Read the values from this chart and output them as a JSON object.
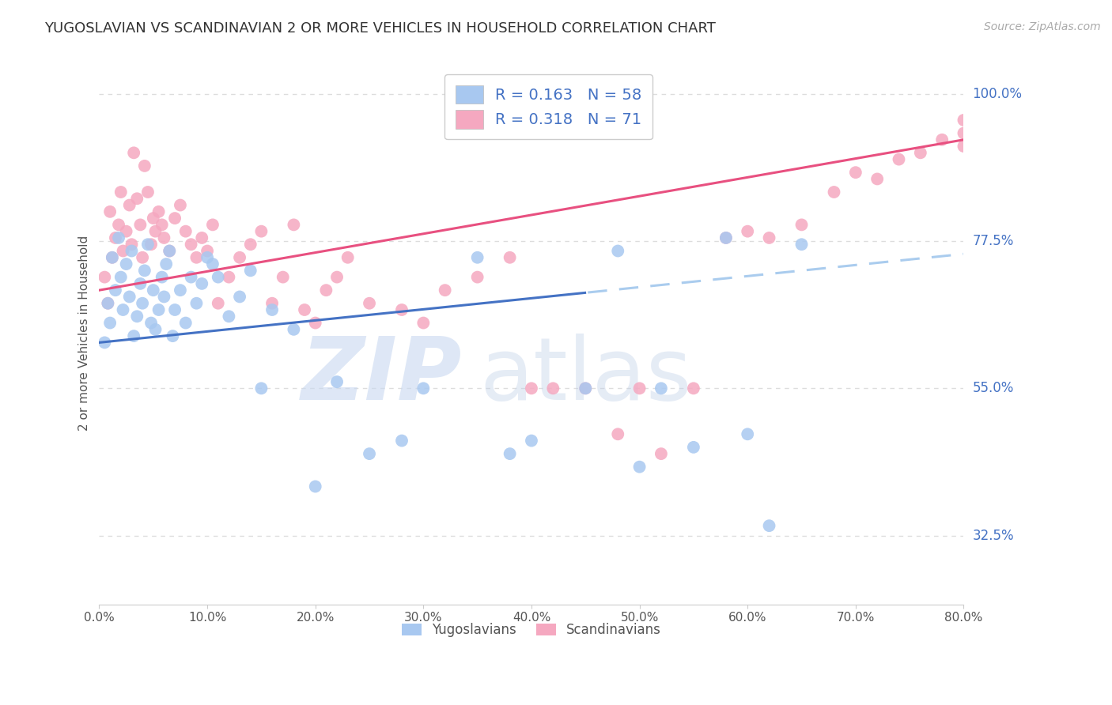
{
  "title": "YUGOSLAVIAN VS SCANDINAVIAN 2 OR MORE VEHICLES IN HOUSEHOLD CORRELATION CHART",
  "source": "Source: ZipAtlas.com",
  "ylabel": "2 or more Vehicles in Household",
  "legend_label1": "Yugoslavians",
  "legend_label2": "Scandinavians",
  "R1": 0.163,
  "N1": 58,
  "R2": 0.318,
  "N2": 71,
  "x_min": 0.0,
  "x_max": 80.0,
  "y_min": 22.0,
  "y_max": 105.0,
  "yticks": [
    32.5,
    55.0,
    77.5,
    100.0
  ],
  "xticks": [
    0.0,
    10.0,
    20.0,
    30.0,
    40.0,
    50.0,
    60.0,
    70.0,
    80.0
  ],
  "color_blue": "#A8C8F0",
  "color_pink": "#F5A8C0",
  "color_blue_line": "#4472C4",
  "color_pink_line": "#E85080",
  "color_blue_dashed": "#AACCEE",
  "color_blue_text": "#4472C4",
  "watermark_zip_color": "#C8D8F0",
  "watermark_atlas_color": "#B0C8F0",
  "background_color": "#FFFFFF",
  "grid_color": "#DDDDDD",
  "yug_x": [
    0.5,
    0.8,
    1.0,
    1.2,
    1.5,
    1.8,
    2.0,
    2.2,
    2.5,
    2.8,
    3.0,
    3.2,
    3.5,
    3.8,
    4.0,
    4.2,
    4.5,
    4.8,
    5.0,
    5.2,
    5.5,
    5.8,
    6.0,
    6.2,
    6.5,
    6.8,
    7.0,
    7.5,
    8.0,
    8.5,
    9.0,
    9.5,
    10.0,
    10.5,
    11.0,
    12.0,
    13.0,
    14.0,
    15.0,
    16.0,
    18.0,
    20.0,
    22.0,
    25.0,
    28.0,
    30.0,
    35.0,
    38.0,
    40.0,
    45.0,
    48.0,
    50.0,
    52.0,
    55.0,
    58.0,
    60.0,
    62.0,
    65.0
  ],
  "yug_y": [
    62.0,
    68.0,
    65.0,
    75.0,
    70.0,
    78.0,
    72.0,
    67.0,
    74.0,
    69.0,
    76.0,
    63.0,
    66.0,
    71.0,
    68.0,
    73.0,
    77.0,
    65.0,
    70.0,
    64.0,
    67.0,
    72.0,
    69.0,
    74.0,
    76.0,
    63.0,
    67.0,
    70.0,
    65.0,
    72.0,
    68.0,
    71.0,
    75.0,
    74.0,
    72.0,
    66.0,
    69.0,
    73.0,
    55.0,
    67.0,
    64.0,
    40.0,
    56.0,
    45.0,
    47.0,
    55.0,
    75.0,
    45.0,
    47.0,
    55.0,
    76.0,
    43.0,
    55.0,
    46.0,
    78.0,
    48.0,
    34.0,
    77.0
  ],
  "scan_x": [
    0.5,
    0.8,
    1.0,
    1.2,
    1.5,
    1.8,
    2.0,
    2.2,
    2.5,
    2.8,
    3.0,
    3.2,
    3.5,
    3.8,
    4.0,
    4.2,
    4.5,
    4.8,
    5.0,
    5.2,
    5.5,
    5.8,
    6.0,
    6.5,
    7.0,
    7.5,
    8.0,
    8.5,
    9.0,
    9.5,
    10.0,
    10.5,
    11.0,
    12.0,
    13.0,
    14.0,
    15.0,
    16.0,
    17.0,
    18.0,
    19.0,
    20.0,
    21.0,
    22.0,
    23.0,
    25.0,
    28.0,
    30.0,
    32.0,
    35.0,
    38.0,
    40.0,
    42.0,
    45.0,
    48.0,
    50.0,
    52.0,
    55.0,
    58.0,
    60.0,
    62.0,
    65.0,
    68.0,
    70.0,
    72.0,
    74.0,
    76.0,
    78.0,
    80.0,
    82.0,
    85.0
  ],
  "scan_y": [
    72.0,
    68.0,
    82.0,
    75.0,
    78.0,
    80.0,
    85.0,
    76.0,
    79.0,
    83.0,
    77.0,
    91.0,
    84.0,
    80.0,
    75.0,
    89.0,
    85.0,
    77.0,
    81.0,
    79.0,
    82.0,
    80.0,
    78.0,
    76.0,
    81.0,
    83.0,
    79.0,
    77.0,
    75.0,
    78.0,
    76.0,
    80.0,
    68.0,
    72.0,
    75.0,
    77.0,
    79.0,
    68.0,
    72.0,
    80.0,
    67.0,
    65.0,
    70.0,
    72.0,
    75.0,
    68.0,
    67.0,
    65.0,
    70.0,
    72.0,
    75.0,
    55.0,
    55.0,
    55.0,
    48.0,
    55.0,
    45.0,
    55.0,
    78.0,
    79.0,
    78.0,
    80.0,
    85.0,
    88.0,
    87.0,
    90.0,
    91.0,
    93.0,
    92.0,
    94.0,
    96.0
  ]
}
